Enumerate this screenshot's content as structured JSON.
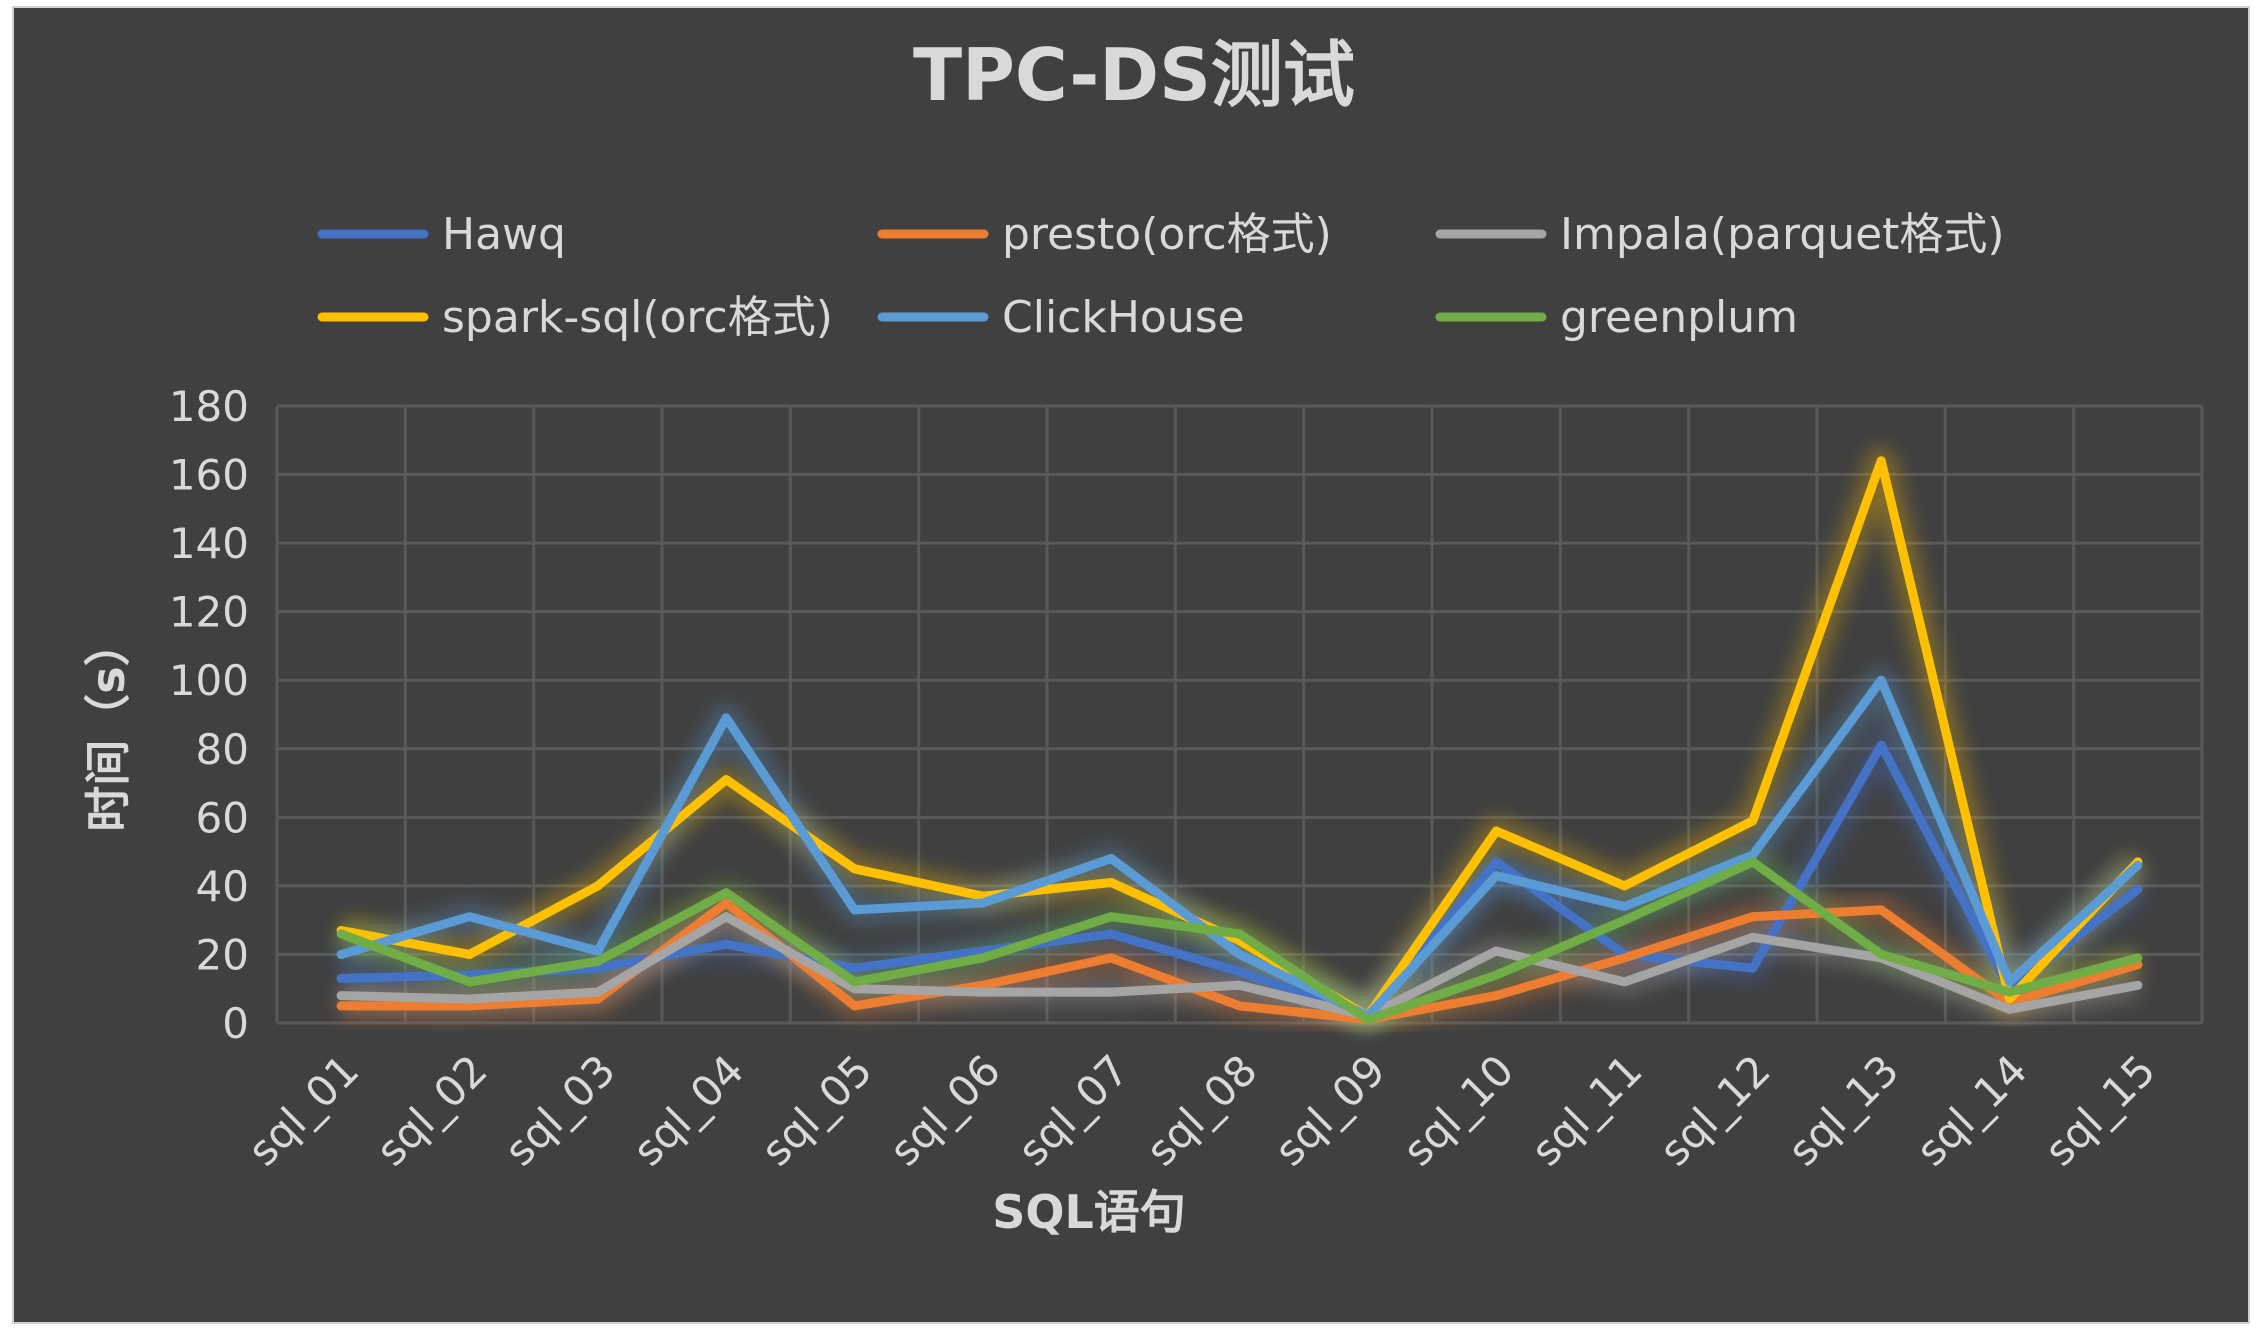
{
  "chart_data": {
    "type": "line",
    "title": "TPC-DS测试",
    "xlabel": "SQL语句",
    "ylabel": "时间（s）",
    "ylim": [
      0,
      180
    ],
    "yticks": [
      0,
      20,
      40,
      60,
      80,
      100,
      120,
      140,
      160,
      180
    ],
    "grid": true,
    "legend_position": "top",
    "categories": [
      "sql_01",
      "sql_02",
      "sql_03",
      "sql_04",
      "sql_05",
      "sql_06",
      "sql_07",
      "sql_08",
      "sql_09",
      "sql_10",
      "sql_11",
      "sql_12",
      "sql_13",
      "sql_14",
      "sql_15"
    ],
    "series": [
      {
        "name": "Hawq",
        "color": "#4472c4",
        "values": [
          13,
          14,
          16,
          23,
          16,
          21,
          26,
          15,
          2,
          47,
          20,
          16,
          81,
          10,
          39
        ]
      },
      {
        "name": "presto(orc格式)",
        "color": "#ed7d31",
        "values": [
          5,
          5,
          7,
          35,
          5,
          11,
          19,
          5,
          1,
          8,
          19,
          31,
          33,
          6,
          17
        ]
      },
      {
        "name": "Impala(parquet格式)",
        "color": "#a5a5a5",
        "values": [
          8,
          7,
          9,
          31,
          10,
          9,
          9,
          11,
          2,
          21,
          12,
          25,
          19,
          4,
          11
        ]
      },
      {
        "name": "spark-sql(orc格式)",
        "color": "#ffc000",
        "values": [
          27,
          20,
          40,
          71,
          45,
          37,
          41,
          24,
          2,
          56,
          40,
          59,
          164,
          7,
          47
        ]
      },
      {
        "name": "ClickHouse",
        "color": "#5b9bd5",
        "values": [
          20,
          31,
          21,
          89,
          33,
          35,
          48,
          20,
          2,
          43,
          34,
          49,
          100,
          12,
          46
        ]
      },
      {
        "name": "greenplum",
        "color": "#70ad47",
        "values": [
          26,
          12,
          18,
          38,
          12,
          19,
          31,
          26,
          1,
          14,
          30,
          47,
          20,
          9,
          19
        ]
      }
    ]
  }
}
